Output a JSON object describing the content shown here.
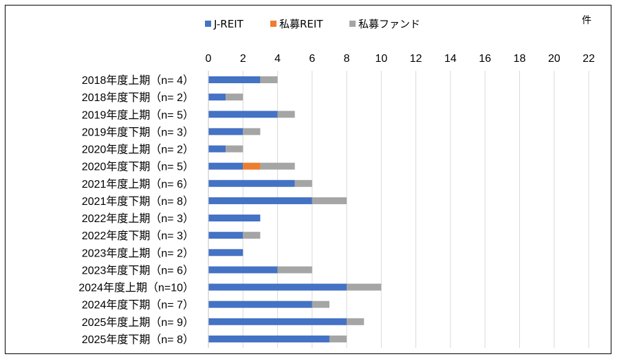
{
  "chart_data": {
    "type": "bar",
    "orientation": "horizontal",
    "stacked": true,
    "unit": "件",
    "xlim": [
      0,
      22
    ],
    "x_ticks": [
      "0",
      "2",
      "4",
      "6",
      "8",
      "10",
      "12",
      "14",
      "16",
      "18",
      "20",
      "22"
    ],
    "grid": true,
    "legend_position": "top",
    "categories": [
      "2018年度上期（n=  4）",
      "2018年度下期（n=  2）",
      "2019年度上期（n=  5）",
      "2019年度下期（n=  3）",
      "2020年度上期（n=  2）",
      "2020年度下期（n=  5）",
      "2021年度上期（n=  6）",
      "2021年度下期（n=  8）",
      "2022年度上期（n=  3）",
      "2022年度下期（n=  3）",
      "2023年度上期（n=  2）",
      "2023年度下期（n=  6）",
      "2024年度上期（n=10）",
      "2024年度下期（n=  7）",
      "2025年度上期（n=  9）",
      "2025年度下期（n=  8）"
    ],
    "series": [
      {
        "name": "J-REIT",
        "color": "#4472C4",
        "values": [
          3,
          1,
          4,
          2,
          1,
          2,
          5,
          6,
          3,
          2,
          2,
          4,
          8,
          6,
          8,
          7
        ]
      },
      {
        "name": "私募REIT",
        "color": "#ED7D31",
        "values": [
          0,
          0,
          0,
          0,
          0,
          1,
          0,
          0,
          0,
          0,
          0,
          0,
          0,
          0,
          0,
          0
        ]
      },
      {
        "name": "私募ファンド",
        "color": "#A5A5A5",
        "values": [
          1,
          1,
          1,
          1,
          1,
          2,
          1,
          2,
          0,
          1,
          0,
          2,
          2,
          1,
          1,
          1
        ]
      }
    ]
  }
}
